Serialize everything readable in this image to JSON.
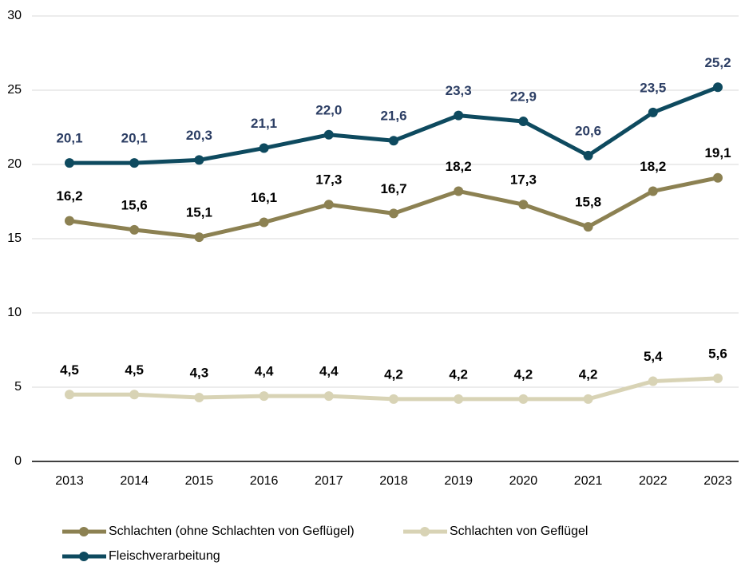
{
  "chart_data": {
    "type": "line",
    "categories": [
      "2013",
      "2014",
      "2015",
      "2016",
      "2017",
      "2018",
      "2019",
      "2020",
      "2021",
      "2022",
      "2023"
    ],
    "series": [
      {
        "name": "Schlachten (ohne Schlachten von Geflügel)",
        "color": "#8c8152",
        "values": [
          16.2,
          15.6,
          15.1,
          16.1,
          17.3,
          16.7,
          18.2,
          17.3,
          15.8,
          18.2,
          19.1
        ],
        "value_labels": [
          "16,2",
          "15,6",
          "15,1",
          "16,1",
          "17,3",
          "16,7",
          "18,2",
          "17,3",
          "15,8",
          "18,2",
          "19,1"
        ],
        "label_color": "#000000"
      },
      {
        "name": "Schlachten von Geflügel",
        "color": "#d8d3b5",
        "values": [
          4.5,
          4.5,
          4.3,
          4.4,
          4.4,
          4.2,
          4.2,
          4.2,
          4.2,
          5.4,
          5.6
        ],
        "value_labels": [
          "4,5",
          "4,5",
          "4,3",
          "4,4",
          "4,4",
          "4,2",
          "4,2",
          "4,2",
          "4,2",
          "5,4",
          "5,6"
        ],
        "label_color": "#000000"
      },
      {
        "name": "Fleischverarbeitung",
        "color": "#0e4a5f",
        "values": [
          20.1,
          20.1,
          20.3,
          21.1,
          22.0,
          21.6,
          23.3,
          22.9,
          20.6,
          23.5,
          25.2
        ],
        "value_labels": [
          "20,1",
          "20,1",
          "20,3",
          "21,1",
          "22,0",
          "21,6",
          "23,3",
          "22,9",
          "20,6",
          "23,5",
          "25,2"
        ],
        "label_color": "#2c3e64"
      }
    ],
    "ylim": [
      0,
      30
    ],
    "yticks": [
      0,
      5,
      10,
      15,
      20,
      25,
      30
    ],
    "grid": true
  }
}
